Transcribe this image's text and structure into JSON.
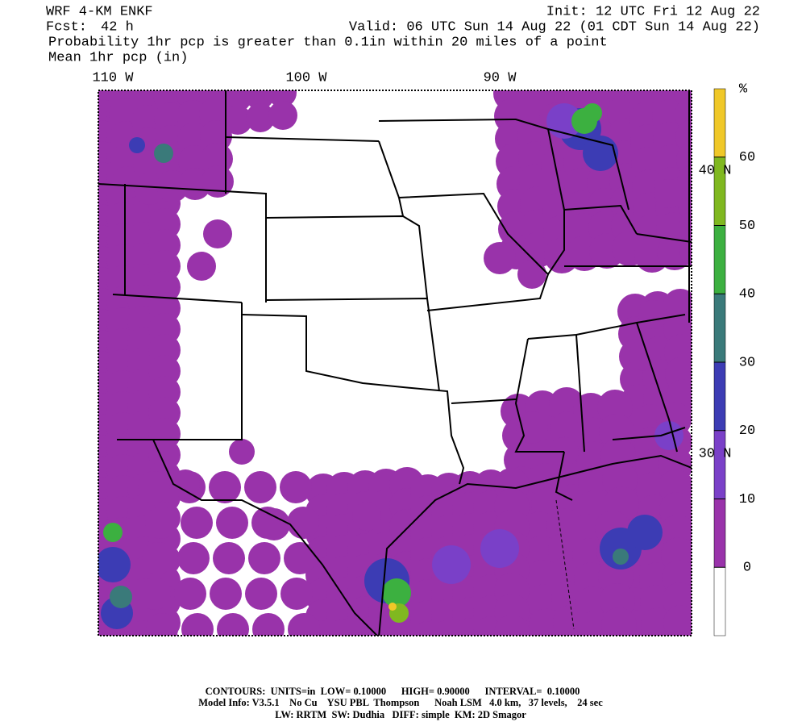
{
  "header": {
    "model": "WRF 4-KM ENKF",
    "init": "Init: 12 UTC Fri 12 Aug 22",
    "fcst_label": "Fcst:",
    "fcst": "42 h",
    "valid": "Valid: 06 UTC Sun 14 Aug 22 (01 CDT Sun 14 Aug 22)",
    "field": "Probability 1hr pcp is greater than 0.1in within 20 miles of a point",
    "overlay": "Mean 1hr pcp (in)"
  },
  "map": {
    "lon_labels": [
      "110 W",
      "100 W",
      "90 W"
    ],
    "lat_labels": [
      "40 N",
      "30 N"
    ]
  },
  "colorbar": {
    "unit": "%",
    "ticks": [
      0,
      10,
      20,
      30,
      40,
      50,
      60
    ],
    "colors": [
      "#ffffff",
      "#9933aa",
      "#7a40c8",
      "#3c3cb4",
      "#3a7a7a",
      "#3cb040",
      "#80b820",
      "#f0c828"
    ]
  },
  "footer": {
    "lines": [
      "CONTOURS:  UNITS=in  LOW= 0.10000      HIGH= 0.90000      INTERVAL=  0.10000",
      "Model Info: V3.5.1    No Cu    YSU PBL  Thompson      Noah LSM   4.0 km,   37 levels,    24 sec",
      "LW: RRTM  SW: Dudhia   DIFF: simple  KM: 2D Smagor"
    ]
  }
}
